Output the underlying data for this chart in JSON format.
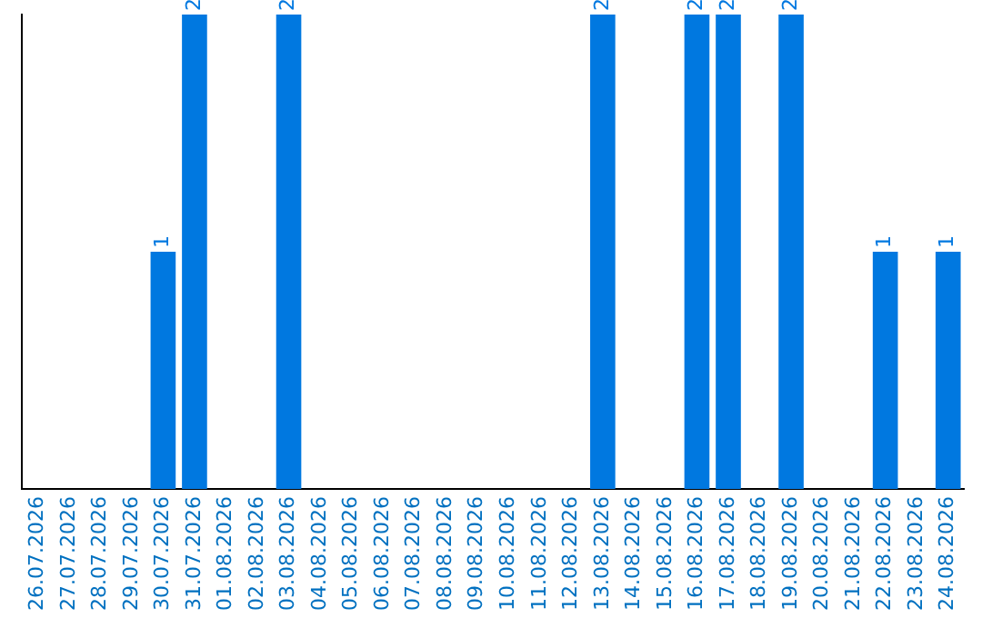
{
  "chart_data": {
    "type": "bar",
    "categories": [
      "26.07.2026",
      "27.07.2026",
      "28.07.2026",
      "29.07.2026",
      "30.07.2026",
      "31.07.2026",
      "01.08.2026",
      "02.08.2026",
      "03.08.2026",
      "04.08.2026",
      "05.08.2026",
      "06.08.2026",
      "07.08.2026",
      "08.08.2026",
      "09.08.2026",
      "10.08.2026",
      "11.08.2026",
      "12.08.2026",
      "13.08.2026",
      "14.08.2026",
      "15.08.2026",
      "16.08.2026",
      "17.08.2026",
      "18.08.2026",
      "19.08.2026",
      "20.08.2026",
      "21.08.2026",
      "22.08.2026",
      "23.08.2026",
      "24.08.2026"
    ],
    "values": [
      0,
      0,
      0,
      0,
      1,
      2,
      0,
      0,
      2,
      0,
      0,
      0,
      0,
      0,
      0,
      0,
      0,
      0,
      2,
      0,
      0,
      2,
      2,
      0,
      2,
      0,
      0,
      1,
      0,
      1
    ],
    "value_labels": [
      null,
      null,
      null,
      null,
      "1",
      "2",
      null,
      null,
      "2",
      null,
      null,
      null,
      null,
      null,
      null,
      null,
      null,
      null,
      "2",
      null,
      null,
      "2",
      "2",
      null,
      "2",
      null,
      null,
      "1",
      null,
      "1"
    ],
    "color": "#0078e0",
    "tick_labels": "x",
    "grid": false,
    "legend": false
  }
}
